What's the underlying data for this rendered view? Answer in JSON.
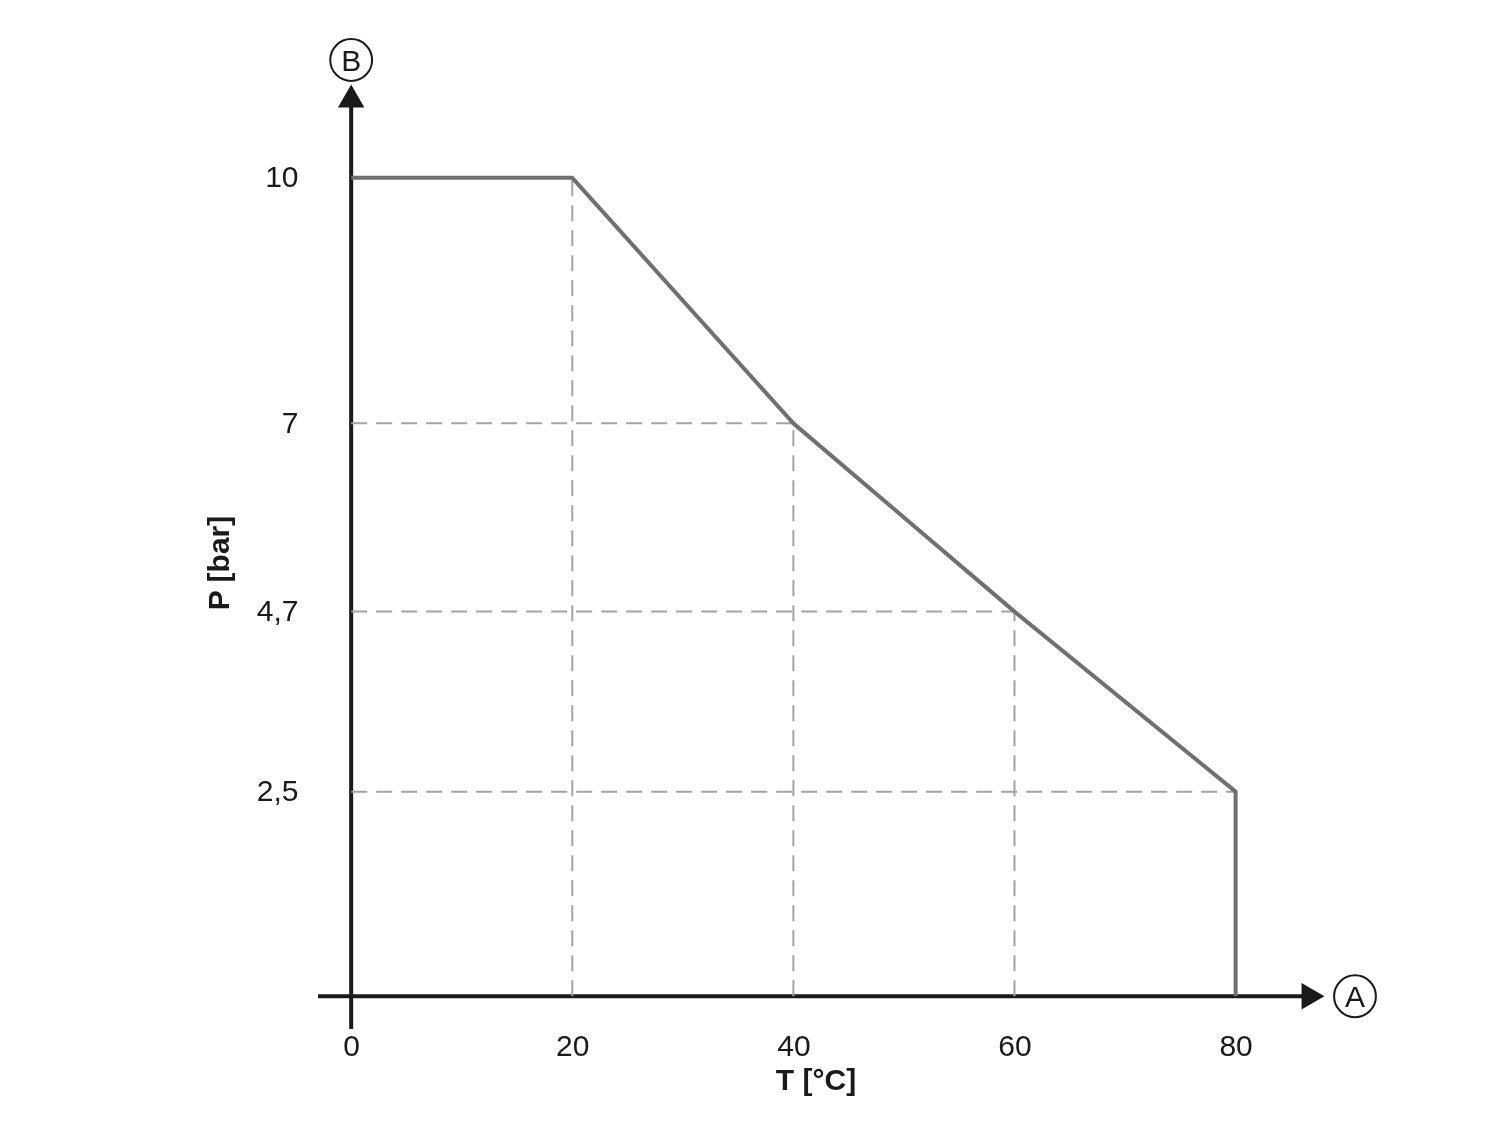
{
  "chart_data": {
    "type": "line",
    "xlabel": "T [°C]",
    "ylabel": "P [bar]",
    "x": [
      0,
      20,
      40,
      60,
      80,
      80
    ],
    "series": [
      {
        "color": "#707070",
        "values": [
          10,
          10,
          7,
          4.7,
          2.5,
          0
        ]
      }
    ],
    "xlim": [
      -3,
      87
    ],
    "ylim": [
      -0.4,
      11
    ],
    "xticks": [
      0,
      20,
      40,
      60,
      80
    ],
    "yticks": [
      {
        "value": 2.5,
        "label": "2,5"
      },
      {
        "value": 4.7,
        "label": "4,7"
      },
      7,
      10
    ],
    "ref_lines": [
      {
        "axis": "x",
        "value": 20,
        "color": "#a3a3a3",
        "line_style": "dashed"
      },
      {
        "axis": "x",
        "value": 40,
        "color": "#a3a3a3",
        "line_style": "dashed"
      },
      {
        "axis": "x",
        "value": 60,
        "color": "#a3a3a3",
        "line_style": "dashed"
      },
      {
        "axis": "y",
        "value": 7,
        "color": "#a3a3a3",
        "line_style": "dashed"
      },
      {
        "axis": "y",
        "value": 4.7,
        "color": "#a3a3a3",
        "line_style": "dashed"
      },
      {
        "axis": "y",
        "value": 2.5,
        "color": "#a3a3a3",
        "line_style": "dashed"
      }
    ],
    "annotations": [
      "A",
      "B"
    ]
  }
}
